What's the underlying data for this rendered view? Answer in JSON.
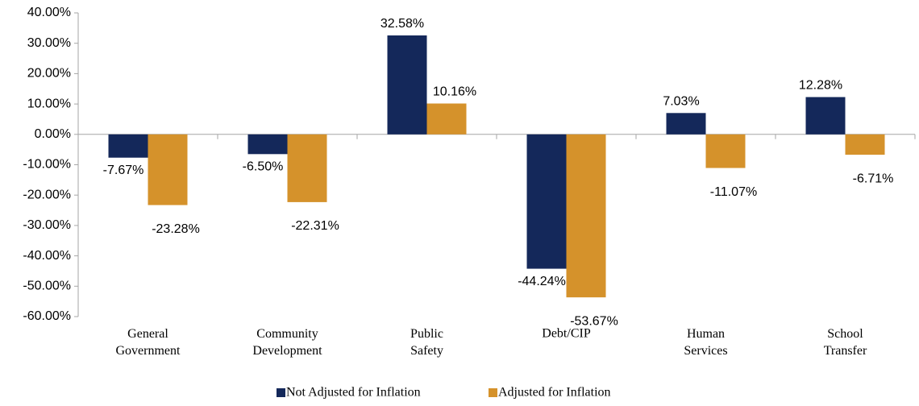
{
  "chart_data": {
    "type": "bar",
    "categories": [
      "General Government",
      "Community Development",
      "Public Safety",
      "Debt/CIP",
      "Human Services",
      "School Transfer"
    ],
    "series": [
      {
        "name": "Not Adjusted for Inflation",
        "color": "#14285a",
        "values": [
          -7.67,
          -6.5,
          32.58,
          -44.24,
          7.03,
          12.28
        ],
        "value_labels": [
          "-7.67%",
          "-6.50%",
          "32.58%",
          "-44.24%",
          "7.03%",
          "12.28%"
        ]
      },
      {
        "name": "Adjusted for Inflation",
        "color": "#d5922b",
        "values": [
          -23.28,
          -22.31,
          10.16,
          -53.67,
          -11.07,
          -6.71
        ],
        "value_labels": [
          "-23.28%",
          "-22.31%",
          "10.16%",
          "-53.67%",
          "-11.07%",
          "-6.71%"
        ]
      }
    ],
    "ylim": [
      -60,
      40
    ],
    "yticks": [
      {
        "value": 40,
        "label": "40.00%"
      },
      {
        "value": 30,
        "label": "30.00%"
      },
      {
        "value": 20,
        "label": "20.00%"
      },
      {
        "value": 10,
        "label": "10.00%"
      },
      {
        "value": 0,
        "label": "0.00%"
      },
      {
        "value": -10,
        "label": "-10.00%"
      },
      {
        "value": -20,
        "label": "-20.00%"
      },
      {
        "value": -30,
        "label": "-30.00%"
      },
      {
        "value": -40,
        "label": "-40.00%"
      },
      {
        "value": -50,
        "label": "-50.00%"
      },
      {
        "value": -60,
        "label": "-60.00%"
      }
    ],
    "grid": false,
    "legend": "bottom"
  }
}
